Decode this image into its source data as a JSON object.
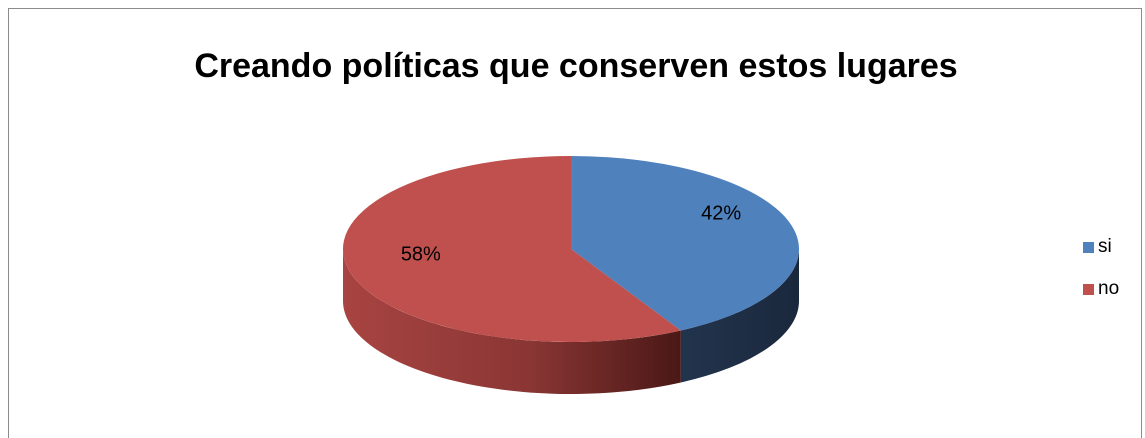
{
  "chart_data": {
    "type": "pie",
    "title": "Creando políticas que conserven estos lugares",
    "categories": [
      "si",
      "no"
    ],
    "values": [
      42,
      58
    ],
    "data_labels": [
      "42%",
      "58%"
    ],
    "colors": [
      "#4F81BD",
      "#C0504D"
    ],
    "side_colors": [
      "#22344D",
      "#7A2F2D"
    ],
    "legend_position": "right",
    "style": "3d"
  }
}
